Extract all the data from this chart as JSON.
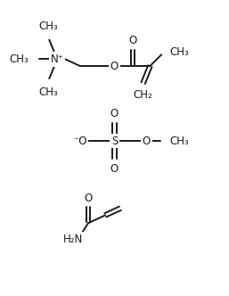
{
  "bg_color": "#ffffff",
  "line_color": "#1a1a1a",
  "line_width": 1.4,
  "font_size": 8.5,
  "fig_width": 2.57,
  "fig_height": 3.32,
  "dpi": 100,
  "xlim": [
    0,
    10
  ],
  "ylim": [
    0,
    13
  ]
}
